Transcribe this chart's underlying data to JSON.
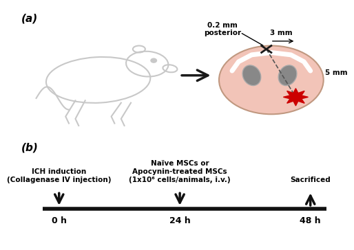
{
  "bg_color": "#ffffff",
  "label_a": "(a)",
  "label_b": "(b)",
  "arrow_color": "#1a1a1a",
  "brain_fill": "#f2c4b8",
  "brain_outline": "#c0a090",
  "ventricle_fill": "#888888",
  "star_color": "#cc0000",
  "dashed_line_color": "#555555",
  "cross_color": "#1a1a1a",
  "mouse_color": "#c8c8c8",
  "text_3mm": "3 mm",
  "text_5mm": "5 mm",
  "text_posterior": "0.2 mm\nposterior",
  "timeline_color": "#111111",
  "t0_label": "0 h",
  "t1_label": "24 h",
  "t2_label": "48 h",
  "text_ich": "ICH induction\n(Collagenase IV injection)",
  "text_mscs": "Naïve MSCs or\nApocynin-treated MSCs\n(1x10⁶ cells/animals, i.v.)",
  "text_sacrificed": "Sacrificed"
}
